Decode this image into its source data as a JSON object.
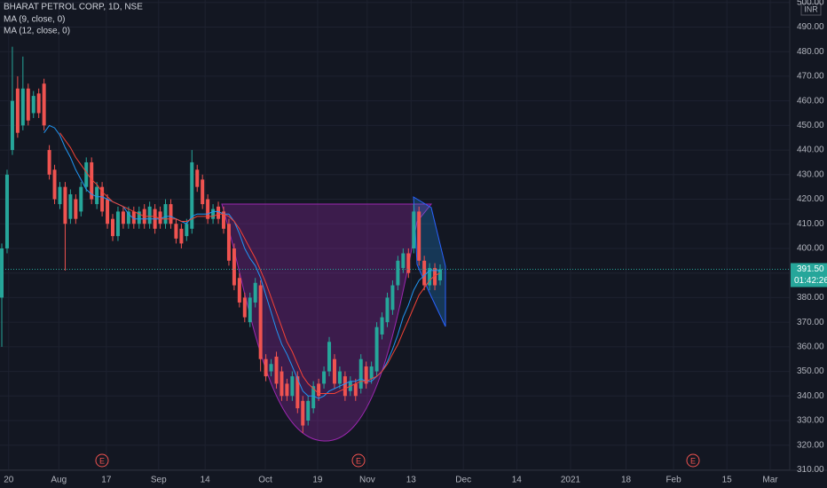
{
  "chart_data": {
    "type": "candlestick",
    "title": "BHARAT PETROL CORP, 1D, NSE",
    "currency": "INR",
    "up_color": "#26a69a",
    "down_color": "#ef5350",
    "open": [
      380,
      400,
      440,
      465,
      450,
      465,
      455,
      463,
      467,
      440,
      432,
      418,
      425,
      412,
      420,
      415,
      425,
      435,
      418,
      425,
      420,
      412,
      405,
      415,
      410,
      415,
      410,
      416,
      410,
      416,
      415,
      410,
      418,
      410,
      408,
      405,
      408,
      432,
      428,
      420,
      412,
      417,
      415,
      410,
      400,
      388,
      380,
      370,
      378,
      385,
      355,
      350,
      356,
      350,
      345,
      340,
      348,
      338,
      330,
      335,
      345,
      345,
      350,
      355,
      345,
      348,
      342,
      345,
      343,
      352,
      347,
      350,
      365,
      370,
      375,
      385,
      392,
      398,
      400,
      415,
      395,
      385,
      392,
      387
    ],
    "high": [
      402,
      432,
      482,
      470,
      478,
      467,
      464,
      465,
      469,
      442,
      434,
      427,
      427,
      424,
      422,
      427,
      437,
      437,
      427,
      427,
      422,
      414,
      417,
      417,
      417,
      417,
      417,
      418,
      419,
      418,
      417,
      420,
      420,
      412,
      410,
      412,
      440,
      434,
      430,
      422,
      418,
      419,
      417,
      412,
      402,
      390,
      382,
      382,
      388,
      387,
      357,
      355,
      358,
      352,
      347,
      350,
      350,
      340,
      340,
      346,
      347,
      352,
      364,
      357,
      352,
      350,
      348,
      347,
      357,
      354,
      354,
      370,
      374,
      382,
      387,
      397,
      400,
      400,
      418,
      417,
      397,
      394,
      394,
      393.5
    ],
    "low": [
      360,
      398,
      438,
      445,
      448,
      450,
      453,
      453,
      448,
      428,
      418,
      416,
      391,
      410,
      410,
      413,
      423,
      418,
      416,
      413,
      408,
      403,
      403,
      408,
      408,
      408,
      408,
      408,
      408,
      406,
      408,
      408,
      408,
      402,
      400,
      403,
      406,
      423,
      416,
      410,
      410,
      410,
      406,
      393,
      383,
      376,
      370,
      368,
      376,
      350,
      346,
      348,
      343,
      338,
      338,
      338,
      333,
      325,
      328,
      333,
      338,
      343,
      348,
      343,
      343,
      338,
      340,
      338,
      341,
      343,
      345,
      348,
      363,
      368,
      373,
      383,
      390,
      388,
      398,
      393,
      383,
      383,
      383,
      385
    ],
    "close": [
      400,
      430,
      460,
      447,
      465,
      452,
      462,
      455,
      450,
      430,
      420,
      425,
      410,
      422,
      412,
      425,
      435,
      420,
      425,
      415,
      410,
      405,
      415,
      410,
      415,
      410,
      415,
      410,
      417,
      408,
      410,
      418,
      410,
      404,
      402,
      410,
      435,
      425,
      418,
      412,
      416,
      412,
      408,
      395,
      385,
      378,
      372,
      380,
      386,
      355,
      348,
      353,
      345,
      340,
      340,
      348,
      335,
      328,
      338,
      344,
      340,
      350,
      362,
      345,
      350,
      340,
      346,
      340,
      355,
      345,
      352,
      368,
      372,
      380,
      385,
      395,
      398,
      390,
      415,
      395,
      385,
      392,
      385,
      391.5
    ],
    "series": [
      {
        "name": "MA (9, close, 0)",
        "color": "#2196f3",
        "values": [
          null,
          null,
          null,
          null,
          null,
          null,
          null,
          null,
          447,
          450,
          449,
          446,
          441,
          437,
          432,
          428,
          424,
          422,
          421,
          421,
          420,
          419,
          418,
          417,
          414,
          412,
          412,
          412,
          412,
          412,
          412,
          413,
          413,
          412,
          411,
          410,
          413,
          414,
          414,
          414,
          415,
          415,
          414,
          414,
          411,
          406,
          400,
          396,
          393,
          388,
          381,
          374,
          367,
          361,
          357,
          352,
          347,
          342,
          340,
          340,
          339,
          340,
          342,
          343,
          344,
          345,
          346,
          346,
          347,
          346,
          346,
          348,
          350,
          354,
          359,
          365,
          372,
          377,
          383,
          387,
          389,
          391,
          391,
          391
        ]
      },
      {
        "name": "MA (12, close, 0)",
        "color": "#f44336",
        "values": [
          null,
          null,
          null,
          null,
          null,
          null,
          null,
          null,
          null,
          null,
          null,
          447,
          444,
          441,
          437,
          434,
          431,
          428,
          426,
          423,
          421,
          419,
          418,
          417,
          416,
          415,
          414,
          413,
          413,
          413,
          412,
          412,
          412,
          412,
          411,
          411,
          412,
          413,
          413,
          413,
          413,
          414,
          414,
          413,
          411,
          408,
          404,
          400,
          396,
          391,
          386,
          380,
          374,
          368,
          362,
          358,
          353,
          348,
          345,
          343,
          341,
          341,
          341,
          341,
          342,
          343,
          344,
          345,
          346,
          346,
          347,
          348,
          350,
          353,
          357,
          361,
          366,
          371,
          376,
          381,
          384,
          387,
          389,
          390
        ]
      }
    ],
    "ylim": [
      309.8,
      501.0
    ],
    "yticks": [
      {
        "value": 310,
        "label": "310.00"
      },
      {
        "value": 320,
        "label": "320.00"
      },
      {
        "value": 330,
        "label": "330.00"
      },
      {
        "value": 340,
        "label": "340.00"
      },
      {
        "value": 350,
        "label": "350.00"
      },
      {
        "value": 360,
        "label": "360.00"
      },
      {
        "value": 370,
        "label": "370.00"
      },
      {
        "value": 380,
        "label": "380.00"
      },
      {
        "value": 390,
        "label": "390.00"
      },
      {
        "value": 400,
        "label": "400.00"
      },
      {
        "value": 410,
        "label": "410.00"
      },
      {
        "value": 420,
        "label": "420.00"
      },
      {
        "value": 430,
        "label": "430.00"
      },
      {
        "value": 440,
        "label": "440.00"
      },
      {
        "value": 450,
        "label": "450.00"
      },
      {
        "value": 460,
        "label": "460.00"
      },
      {
        "value": 470,
        "label": "470.00"
      },
      {
        "value": 480,
        "label": "480.00"
      },
      {
        "value": 490,
        "label": "490.00"
      },
      {
        "value": 500,
        "label": "500.00"
      }
    ],
    "xlim": [
      -0.34,
      149.2
    ],
    "xticks": [
      {
        "value": 1.3,
        "label": "20"
      },
      {
        "value": 10.8,
        "label": "Aug"
      },
      {
        "value": 19.8,
        "label": "17"
      },
      {
        "value": 29.7,
        "label": "Sep"
      },
      {
        "value": 38.5,
        "label": "14"
      },
      {
        "value": 49.9,
        "label": "Oct"
      },
      {
        "value": 59.8,
        "label": "19"
      },
      {
        "value": 69.2,
        "label": "Nov"
      },
      {
        "value": 77.5,
        "label": "13"
      },
      {
        "value": 87.4,
        "label": "Dec"
      },
      {
        "value": 97.5,
        "label": "14"
      },
      {
        "value": 107.7,
        "label": "2021"
      },
      {
        "value": 118.2,
        "label": "18"
      },
      {
        "value": 127.2,
        "label": "Feb"
      },
      {
        "value": 137.3,
        "label": "15"
      },
      {
        "value": 145.5,
        "label": "Mar"
      }
    ],
    "grid": true,
    "last_price": {
      "value": 391.5,
      "label": "391.50"
    },
    "countdown": "01:42:26",
    "events": [
      "E",
      "E",
      "E"
    ]
  }
}
